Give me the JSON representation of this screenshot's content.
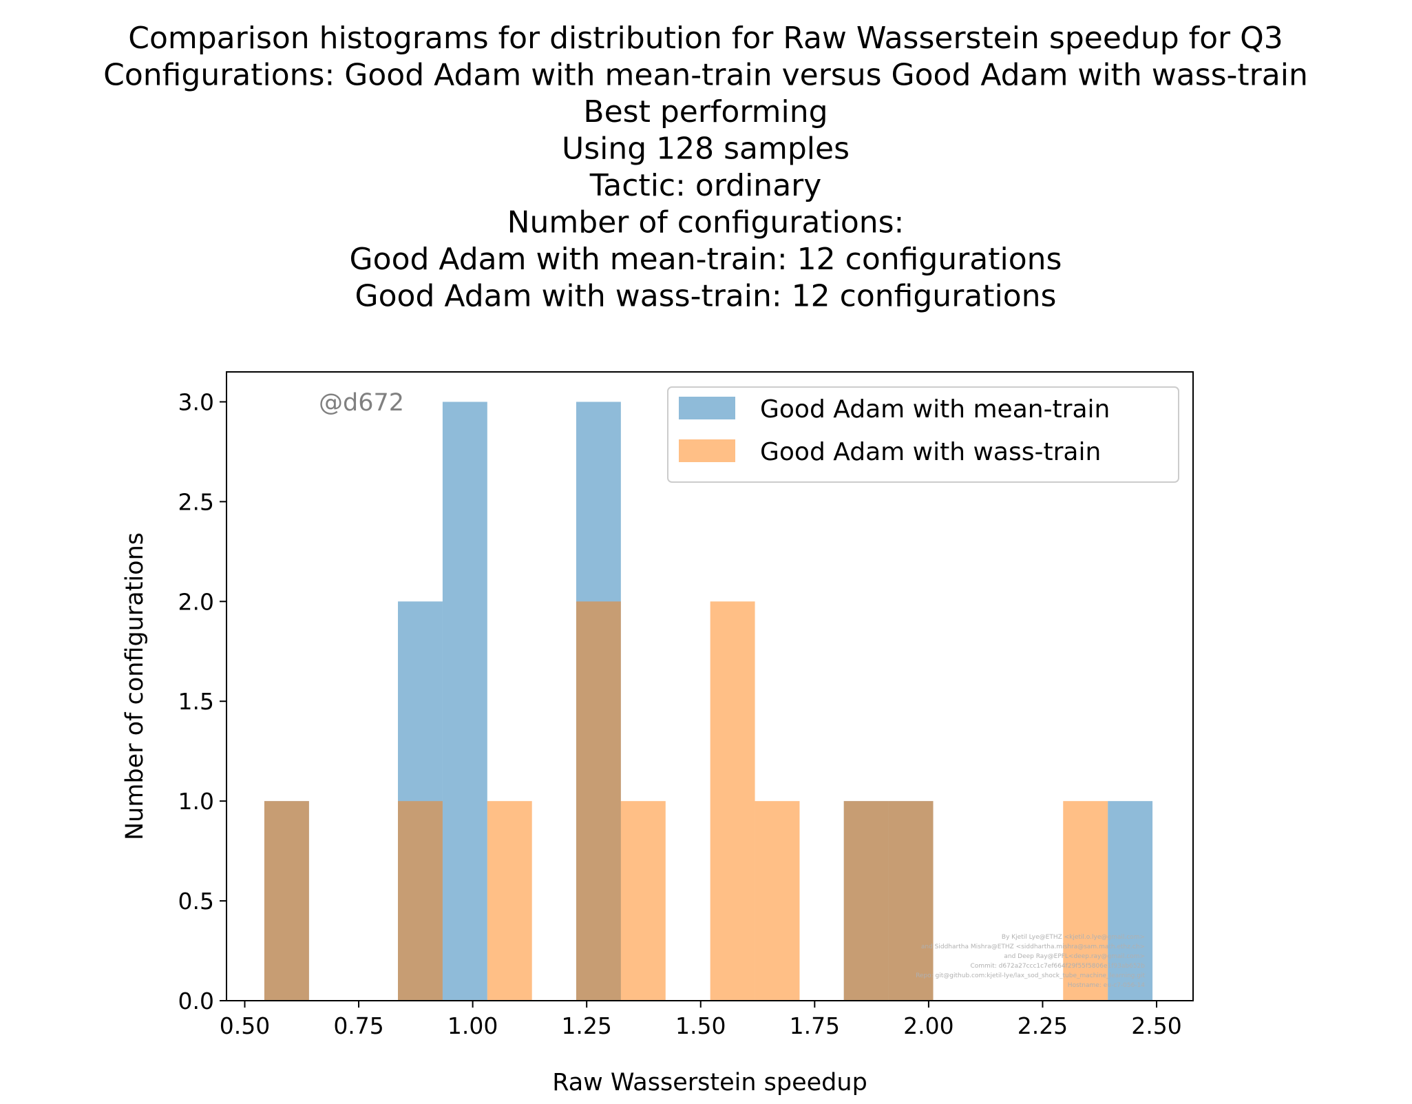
{
  "chart_data": {
    "type": "bar",
    "title_lines": [
      "Comparison histograms for distribution for Raw Wasserstein speedup for Q3",
      "Configurations: Good Adam with mean-train versus Good Adam with wass-train",
      "Best performing",
      "Using 128 samples",
      "Tactic: ordinary",
      "Number of configurations:",
      "Good Adam with mean-train: 12 configurations",
      "Good Adam with wass-train: 12 configurations"
    ],
    "xlabel": "Raw Wasserstein speedup",
    "ylabel": "Number of configurations",
    "xlim": [
      0.46,
      2.58
    ],
    "ylim": [
      0,
      3.15
    ],
    "xticks": [
      0.5,
      0.75,
      1.0,
      1.25,
      1.5,
      1.75,
      2.0,
      2.25,
      2.5
    ],
    "xtick_labels": [
      "0.50",
      "0.75",
      "1.00",
      "1.25",
      "1.50",
      "1.75",
      "2.00",
      "2.25",
      "2.50"
    ],
    "yticks": [
      0.0,
      0.5,
      1.0,
      1.5,
      2.0,
      2.5,
      3.0
    ],
    "ytick_labels": [
      "0.0",
      "0.5",
      "1.0",
      "1.5",
      "2.0",
      "2.5",
      "3.0"
    ],
    "grid": false,
    "legend_position": "top-right",
    "watermark": "@d672",
    "credits": [
      "By Kjetil Lye@ETHZ <kjetil.o.lye@gmail.com>",
      "and Siddhartha Mishra@ETHZ <siddhartha.mishra@sam.math.ethz.ch>",
      "and Deep Ray@EPFL<deep.ray@gmail.com>",
      "Commit: d672a27ccc1c7ef664f29f55f5806e1f93ab652b",
      "Repo: git@github.com:kjetil-lye/lax_sod_shock_tube_machine_learning.git",
      "Hostname: eu-c7-056-14"
    ],
    "series": [
      {
        "name": "Good Adam with mean-train",
        "color": "#1f77b4",
        "alpha": 0.5,
        "bins": [
          {
            "x0": 0.543,
            "x1": 0.641,
            "count": 1
          },
          {
            "x0": 0.836,
            "x1": 0.934,
            "count": 2
          },
          {
            "x0": 0.934,
            "x1": 1.032,
            "count": 3
          },
          {
            "x0": 1.227,
            "x1": 1.325,
            "count": 3
          },
          {
            "x0": 1.814,
            "x1": 1.912,
            "count": 1
          },
          {
            "x0": 1.912,
            "x1": 2.01,
            "count": 1
          },
          {
            "x0": 2.393,
            "x1": 2.491,
            "count": 1
          }
        ]
      },
      {
        "name": "Good Adam with wass-train",
        "color": "#ff7f0e",
        "alpha": 0.5,
        "bins": [
          {
            "x0": 0.543,
            "x1": 0.641,
            "count": 1
          },
          {
            "x0": 0.836,
            "x1": 0.934,
            "count": 1
          },
          {
            "x0": 1.032,
            "x1": 1.13,
            "count": 1
          },
          {
            "x0": 1.227,
            "x1": 1.325,
            "count": 2
          },
          {
            "x0": 1.325,
            "x1": 1.423,
            "count": 1
          },
          {
            "x0": 1.521,
            "x1": 1.619,
            "count": 2
          },
          {
            "x0": 1.619,
            "x1": 1.717,
            "count": 1
          },
          {
            "x0": 1.814,
            "x1": 1.912,
            "count": 1
          },
          {
            "x0": 1.912,
            "x1": 2.01,
            "count": 1
          },
          {
            "x0": 2.295,
            "x1": 2.393,
            "count": 1
          }
        ]
      }
    ]
  }
}
